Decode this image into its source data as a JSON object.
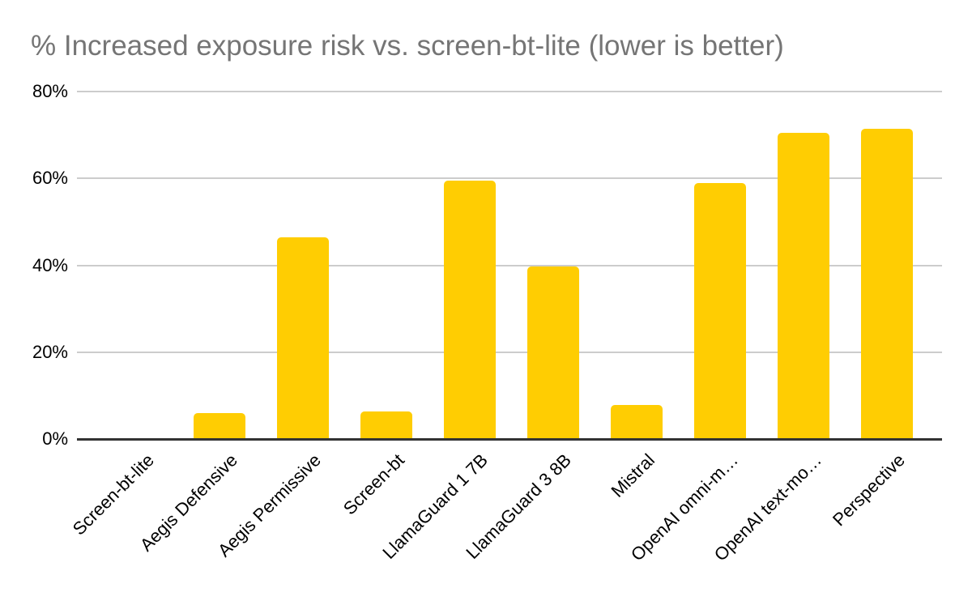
{
  "colors": {
    "background": "#ffffff",
    "bar": "#ffcd02",
    "title_text": "#757575",
    "gridline": "#cccccc",
    "axis_line": "#333333",
    "tick_text": "#000000"
  },
  "chart_data": {
    "type": "bar",
    "title": "% Increased exposure risk vs. screen-bt-lite (lower is better)",
    "categories": [
      "Screen-bt-lite",
      "Aegis Defensive",
      "Aegis Permissive",
      "Screen-bt",
      "LlamaGuard 1 7B",
      "LlamaGuard 3 8B",
      "Mistral",
      "OpenAI omni-m…",
      "OpenAI text-mo…",
      "Perspective"
    ],
    "values": [
      0,
      6.0,
      46.5,
      6.3,
      59.5,
      39.7,
      7.8,
      59.0,
      70.5,
      71.5
    ],
    "value_unit": "%",
    "xlabel": "",
    "ylabel": "",
    "ylim": [
      0,
      80
    ],
    "yticks": [
      {
        "value": 80,
        "label": "80%"
      },
      {
        "value": 60,
        "label": "60%"
      },
      {
        "value": 40,
        "label": "40%"
      },
      {
        "value": 20,
        "label": "20%"
      },
      {
        "value": 0,
        "label": "0%"
      }
    ],
    "grid": "horizontal",
    "legend": "none",
    "bar_color": "#ffcd02"
  }
}
